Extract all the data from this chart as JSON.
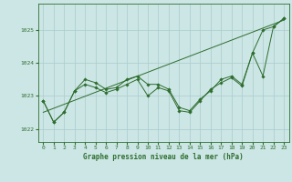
{
  "title": "Graphe pression niveau de la mer (hPa)",
  "background_color": "#cce5e5",
  "grid_color": "#aacccc",
  "line_color": "#2d6e2d",
  "xlim": [
    -0.5,
    23.5
  ],
  "ylim": [
    1021.6,
    1025.8
  ],
  "yticks": [
    1022,
    1023,
    1024,
    1025
  ],
  "xticks": [
    0,
    1,
    2,
    3,
    4,
    5,
    6,
    7,
    8,
    9,
    10,
    11,
    12,
    13,
    14,
    15,
    16,
    17,
    18,
    19,
    20,
    21,
    22,
    23
  ],
  "series1_y": [
    1022.85,
    1022.2,
    1022.5,
    1023.15,
    1023.5,
    1023.4,
    1023.2,
    1023.25,
    1023.5,
    1023.6,
    1023.35,
    1023.35,
    1023.2,
    1022.65,
    1022.55,
    1022.9,
    1023.15,
    1023.5,
    1023.6,
    1023.35,
    1024.3,
    1025.0,
    1025.1,
    1025.35
  ],
  "series2_y": [
    1022.85,
    1022.2,
    1022.5,
    1023.15,
    1023.35,
    1023.25,
    1023.1,
    1023.2,
    1023.35,
    1023.5,
    1023.0,
    1023.25,
    1023.15,
    1022.55,
    1022.5,
    1022.85,
    1023.2,
    1023.4,
    1023.55,
    1023.3,
    1024.3,
    1023.6,
    1025.1,
    1025.35
  ],
  "trend_x": [
    0,
    23
  ],
  "trend_y": [
    1022.5,
    1025.3
  ],
  "title_fontsize": 5.5,
  "tick_fontsize": 4.5,
  "marker_size": 1.8,
  "line_width": 0.7
}
